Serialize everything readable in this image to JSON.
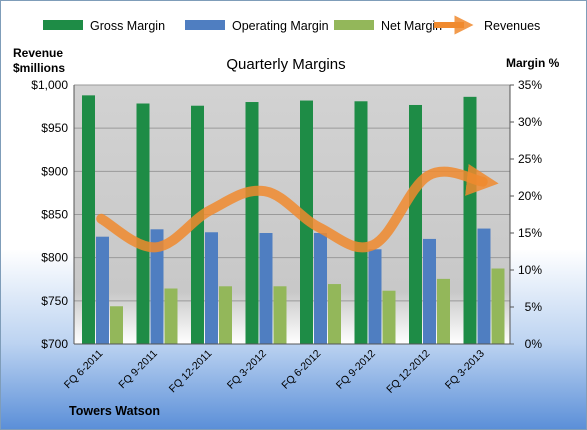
{
  "chart_data": {
    "type": "bar",
    "title": "Quarterly Margins",
    "categories": [
      "FQ 6-2011",
      "FQ 9-2011",
      "FQ 12-2011",
      "FQ 3-2012",
      "FQ 6-2012",
      "FQ 9-2012",
      "FQ 12-2012",
      "FQ 3-2013"
    ],
    "series": [
      {
        "name": "Gross Margin",
        "axis": "right",
        "color": "#1e8c46",
        "values": [
          33.6,
          32.5,
          32.2,
          32.7,
          32.9,
          32.8,
          32.3,
          33.4
        ]
      },
      {
        "name": "Operating Margin",
        "axis": "right",
        "color": "#4f7ec1",
        "values": [
          14.5,
          15.5,
          15.1,
          15.0,
          15.0,
          12.8,
          14.2,
          15.6
        ]
      },
      {
        "name": "Net Margin",
        "axis": "right",
        "color": "#93b75a",
        "values": [
          5.1,
          7.5,
          7.8,
          7.8,
          8.1,
          7.2,
          8.8,
          10.2
        ]
      },
      {
        "name": "Revenues",
        "axis": "left",
        "type": "line",
        "color": "#f08a2e",
        "values": [
          845,
          812,
          855,
          877,
          835,
          815,
          895,
          888
        ]
      }
    ],
    "y_left": {
      "label_line1": "Revenue",
      "label_line2": "$millions",
      "min": 700,
      "max": 1000,
      "ticks": [
        "$700",
        "$750",
        "$800",
        "$850",
        "$900",
        "$950",
        "$1,000"
      ]
    },
    "y_right": {
      "label": "Margin %",
      "min": 0,
      "max": 35,
      "ticks": [
        "0%",
        "5%",
        "10%",
        "15%",
        "20%",
        "25%",
        "30%",
        "35%"
      ]
    },
    "legend_position": "top",
    "grid": true
  },
  "source_label": "Towers Watson"
}
